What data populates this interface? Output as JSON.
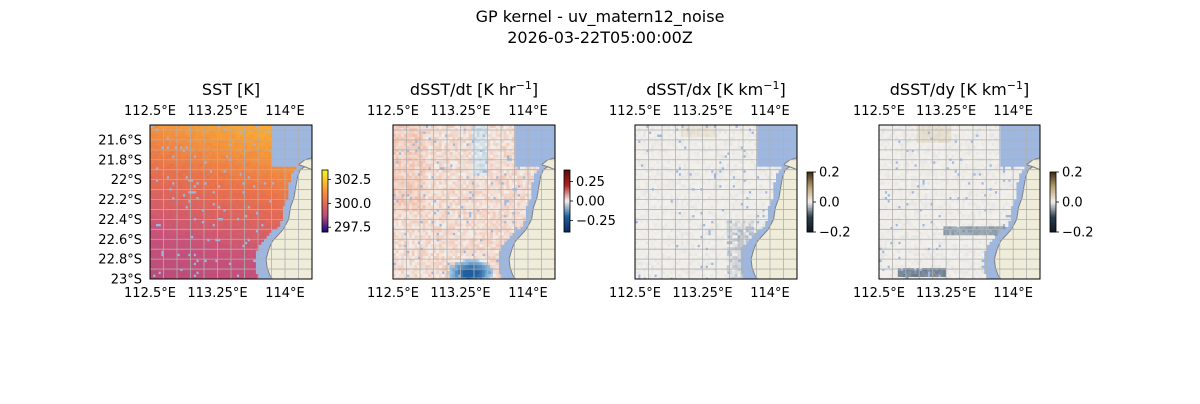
{
  "figure": {
    "title_line1": "GP kernel - uv_matern12_noise",
    "title_line2": "2026-03-22T05:00:00Z"
  },
  "colors": {
    "ocean": "#9db7e0",
    "land": "#efecd9",
    "coast": "#808080",
    "grid": "#b0b0b0",
    "sst_low": "#b34a7a",
    "sst_mid": "#e8724c",
    "sst_high": "#fbab33",
    "diff_neg": "#1f5fa0",
    "diff_zero": "#f3f1ee",
    "diff_pos": "#b22222",
    "bal_neg": "#2a3f4f",
    "bal_pos": "#b8a070"
  },
  "chart_data": [
    {
      "type": "heatmap",
      "panel": "sst",
      "title": "SST [K]",
      "xlim": [
        112.5,
        114.3
      ],
      "ylim": [
        -23.0,
        -21.45
      ],
      "x_ticks": [
        112.5,
        113.25,
        114.0
      ],
      "x_tick_labels": [
        "112.5°E",
        "113.25°E",
        "114°E"
      ],
      "y_ticks": [
        -21.6,
        -21.8,
        -22.0,
        -22.2,
        -22.4,
        -22.6,
        -22.8,
        -23.0
      ],
      "y_tick_labels": [
        "21.6°S",
        "21.8°S",
        "22°S",
        "22.2°S",
        "22.4°S",
        "22.6°S",
        "22.8°S",
        "23°S"
      ],
      "colorbar": {
        "min": 297.0,
        "max": 303.5,
        "ticks": [
          302.5,
          300.0,
          297.5
        ],
        "tick_labels": [
          "302.5",
          "300.0",
          "297.5"
        ]
      },
      "colormap": "plasma-like",
      "field": "warm (~303 K) in north-east, cooling to ~298 K toward south"
    },
    {
      "type": "heatmap",
      "panel": "dsstdt",
      "title": "dSST/dt [K hr",
      "title_sup": "−1",
      "title_end": "]",
      "xlim": [
        112.5,
        114.3
      ],
      "ylim": [
        -23.0,
        -21.45
      ],
      "x_ticks": [
        112.5,
        113.25,
        114.0
      ],
      "x_tick_labels": [
        "112.5°E",
        "113.25°E",
        "114°E"
      ],
      "colorbar": {
        "min": -0.4,
        "max": 0.4,
        "ticks": [
          0.25,
          0.0,
          -0.25
        ],
        "tick_labels": [
          "0.25",
          "0.00",
          "−0.25"
        ]
      },
      "colormap": "diverging blue-white-red",
      "field": "slightly positive over most of domain, strong negative patch near 113.3°E, 22.9°S"
    },
    {
      "type": "heatmap",
      "panel": "dsstdx",
      "title": "dSST/dx [K km",
      "title_sup": "−1",
      "title_end": "]",
      "xlim": [
        112.5,
        114.3
      ],
      "ylim": [
        -23.0,
        -21.45
      ],
      "x_ticks": [
        112.5,
        113.25,
        114.0
      ],
      "x_tick_labels": [
        "112.5°E",
        "113.25°E",
        "114°E"
      ],
      "colorbar": {
        "min": -0.2,
        "max": 0.2,
        "ticks": [
          0.2,
          0.0,
          -0.2
        ],
        "tick_labels": [
          "0.2",
          "0.0",
          "−0.2"
        ]
      },
      "colormap": "balance",
      "field": "near zero, faint grey structures"
    },
    {
      "type": "heatmap",
      "panel": "dsstdy",
      "title": "dSST/dy [K km",
      "title_sup": "−1",
      "title_end": "]",
      "xlim": [
        112.5,
        114.3
      ],
      "ylim": [
        -23.0,
        -21.45
      ],
      "x_ticks": [
        112.5,
        113.25,
        114.0
      ],
      "x_tick_labels": [
        "112.5°E",
        "113.25°E",
        "114°E"
      ],
      "colorbar": {
        "min": -0.2,
        "max": 0.2,
        "ticks": [
          0.2,
          0.0,
          -0.2
        ],
        "tick_labels": [
          "0.2",
          "0.0",
          "−0.2"
        ]
      },
      "colormap": "balance",
      "field": "near zero, dark bands near 22.5°S and 22.9°S"
    }
  ]
}
